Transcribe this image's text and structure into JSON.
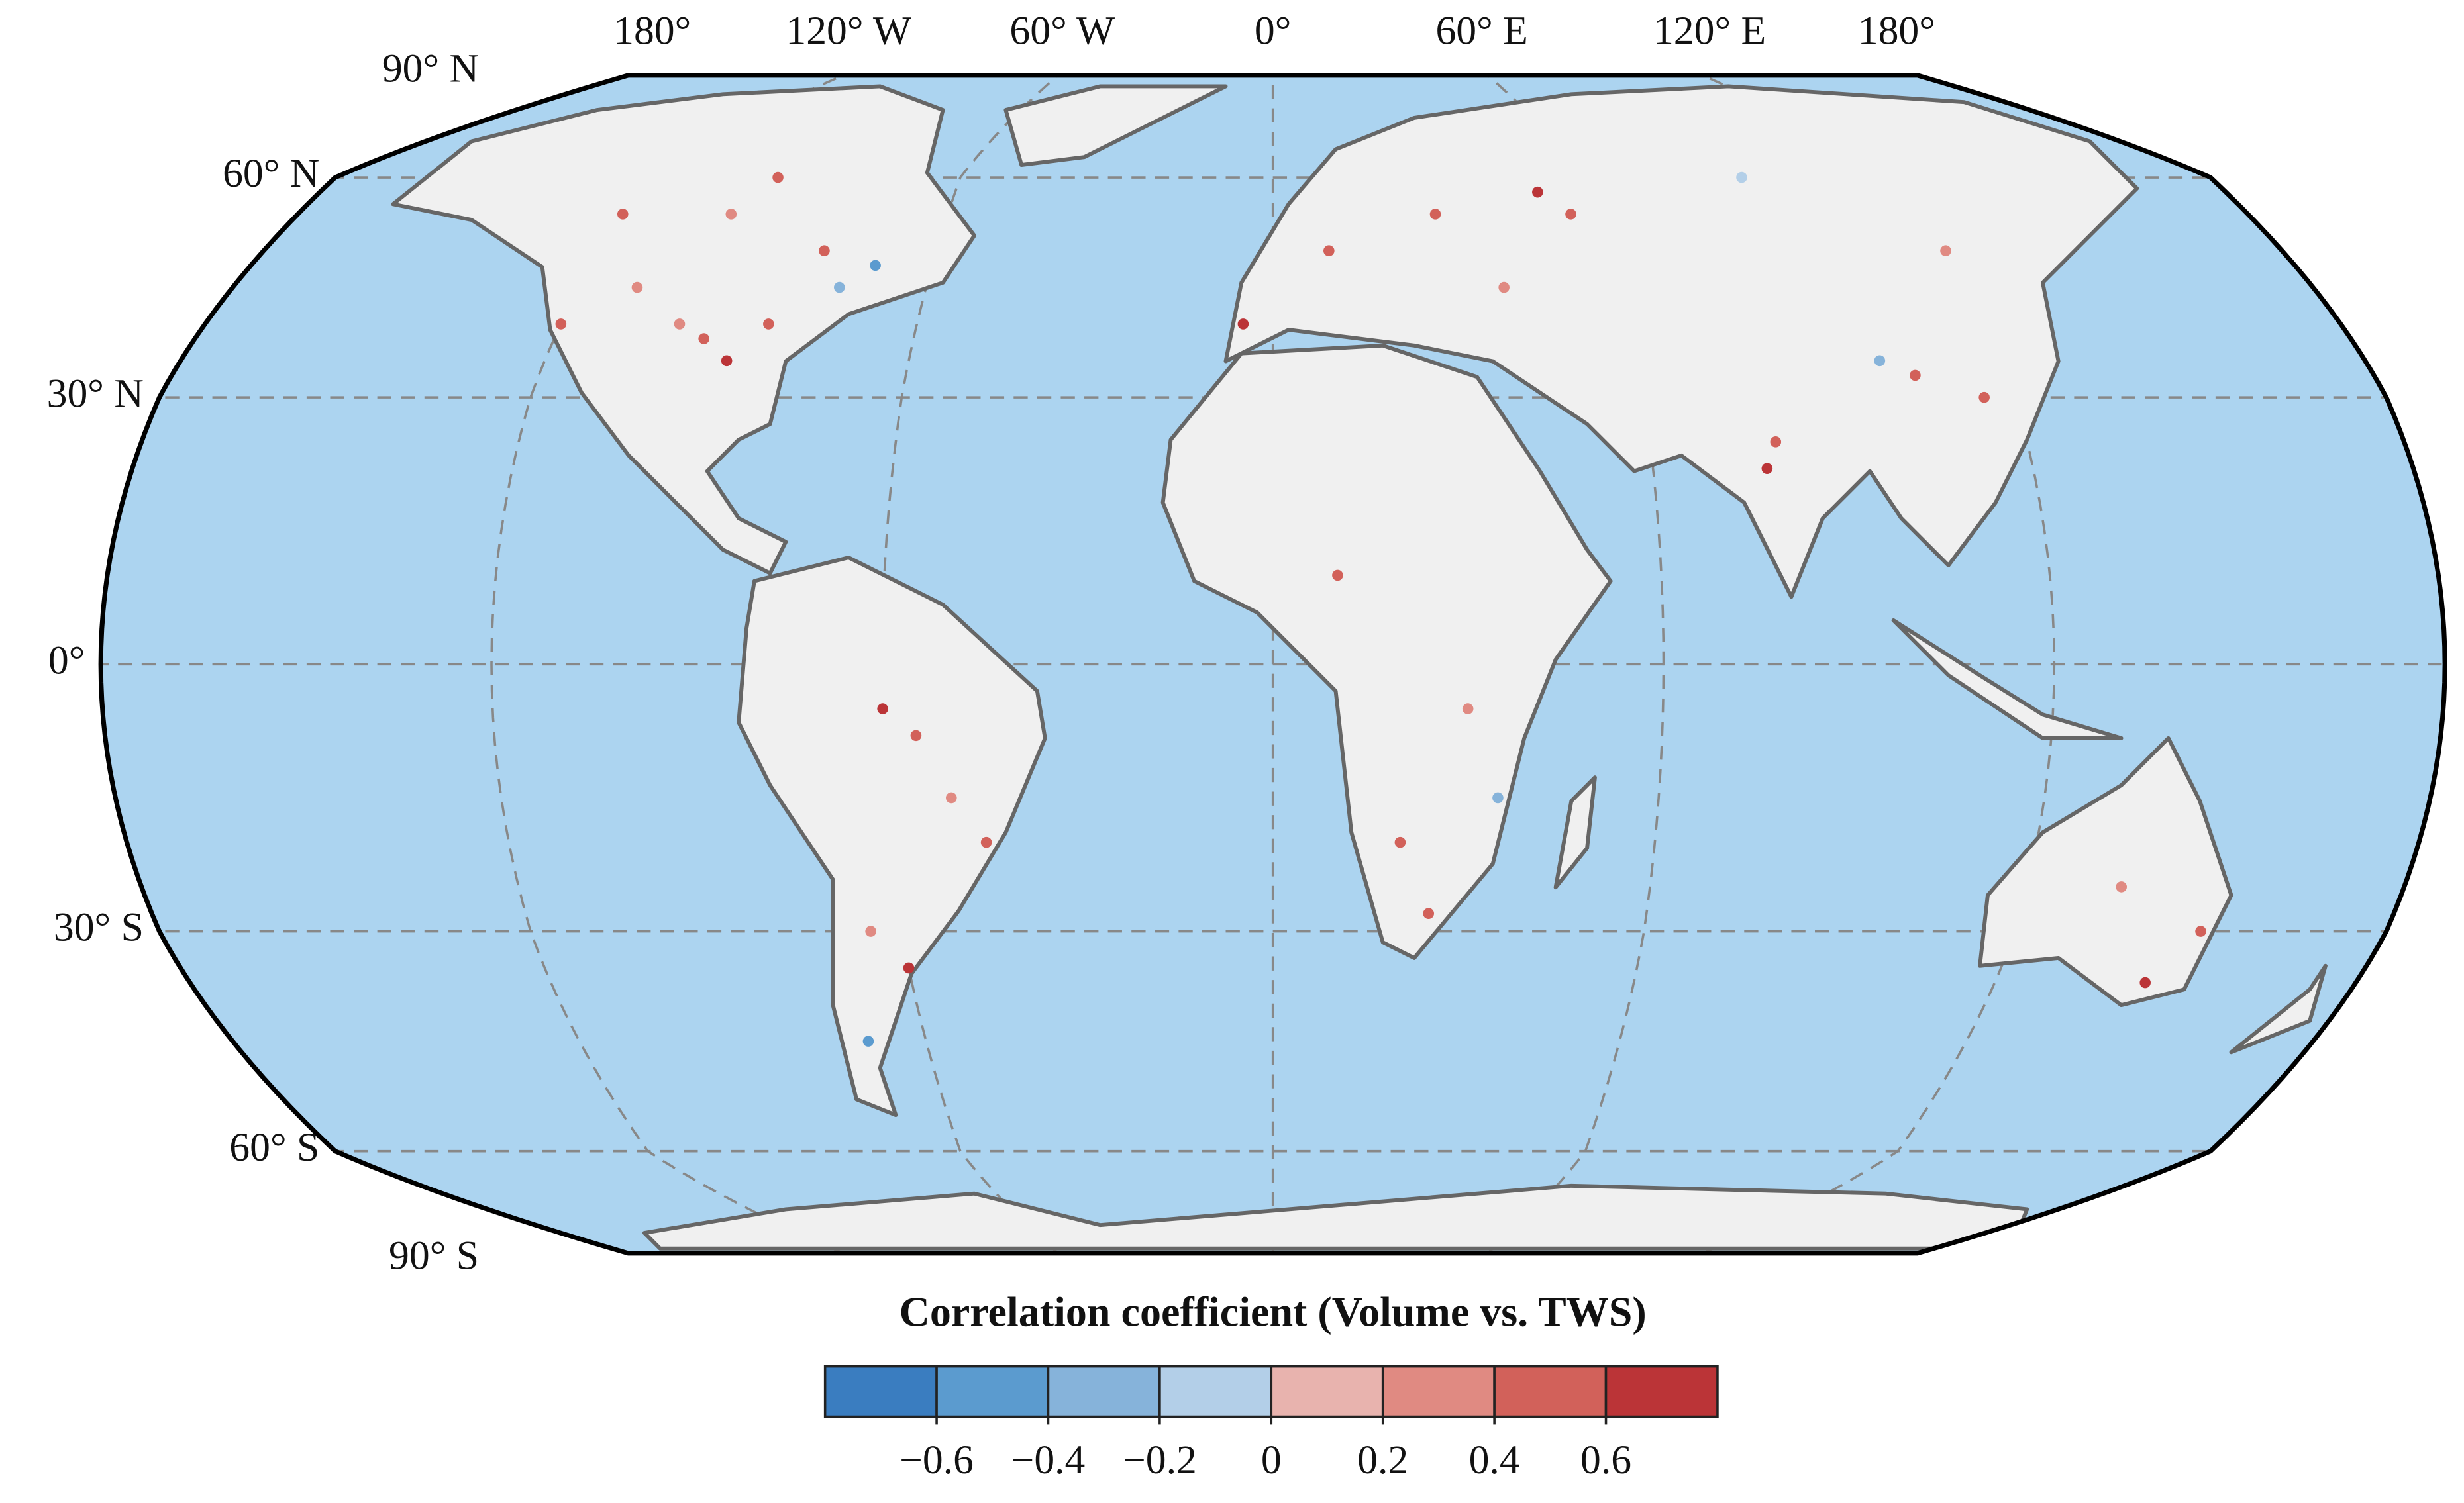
{
  "chart_data": {
    "type": "scatter",
    "title": "Correlation coefficient (Volume vs. TWS)",
    "lat_labels": [
      "90° N",
      "60° N",
      "30° N",
      "0°",
      "30° S",
      "60° S",
      "90° S"
    ],
    "lon_labels": [
      "180°",
      "120° W",
      "60° W",
      "0°",
      "60° E",
      "120° E",
      "180°"
    ],
    "x": [
      -90,
      -95,
      -100,
      -85,
      -120,
      -110,
      -75,
      -80,
      -100,
      -120,
      -95,
      -70,
      -60,
      -55,
      -45,
      -65,
      -60,
      -70,
      -50,
      25,
      30,
      10,
      35,
      20,
      10,
      30,
      -5,
      40,
      50,
      55,
      100,
      105,
      78,
      80,
      115,
      120,
      90,
      145,
      135,
      150
    ],
    "y": [
      35,
      38,
      40,
      40,
      40,
      45,
      45,
      50,
      55,
      55,
      60,
      48,
      -5,
      -8,
      -20,
      -30,
      -35,
      -45,
      -15,
      -28,
      -5,
      10,
      -15,
      -20,
      50,
      55,
      40,
      45,
      58,
      55,
      35,
      33,
      22,
      25,
      30,
      50,
      60,
      -37,
      -25,
      -30
    ],
    "values": [
      0.7,
      0.5,
      0.3,
      0.6,
      0.5,
      0.2,
      -0.3,
      0.4,
      0.3,
      0.6,
      0.5,
      -0.5,
      0.7,
      0.6,
      0.5,
      0.3,
      0.7,
      -0.5,
      0.2,
      0.6,
      0.3,
      0.4,
      -0.3,
      0.5,
      0.4,
      0.6,
      0.7,
      0.3,
      0.7,
      0.6,
      -0.3,
      0.5,
      0.7,
      0.6,
      0.4,
      0.3,
      -0.2,
      0.7,
      0.3,
      0.5
    ],
    "clim": [
      -0.8,
      0.8
    ],
    "colors": [
      "#3a7dc0",
      "#5b9bcf",
      "#86b3da",
      "#b3cfe8",
      "#e8b3ae",
      "#e08a82",
      "#d2615a",
      "#bb3437"
    ],
    "cticks": [
      {
        "value": -0.6,
        "label": "−0.6"
      },
      {
        "value": -0.4,
        "label": "−0.4"
      },
      {
        "value": -0.2,
        "label": "−0.2"
      },
      0,
      0.2,
      0.4,
      0.6
    ]
  }
}
